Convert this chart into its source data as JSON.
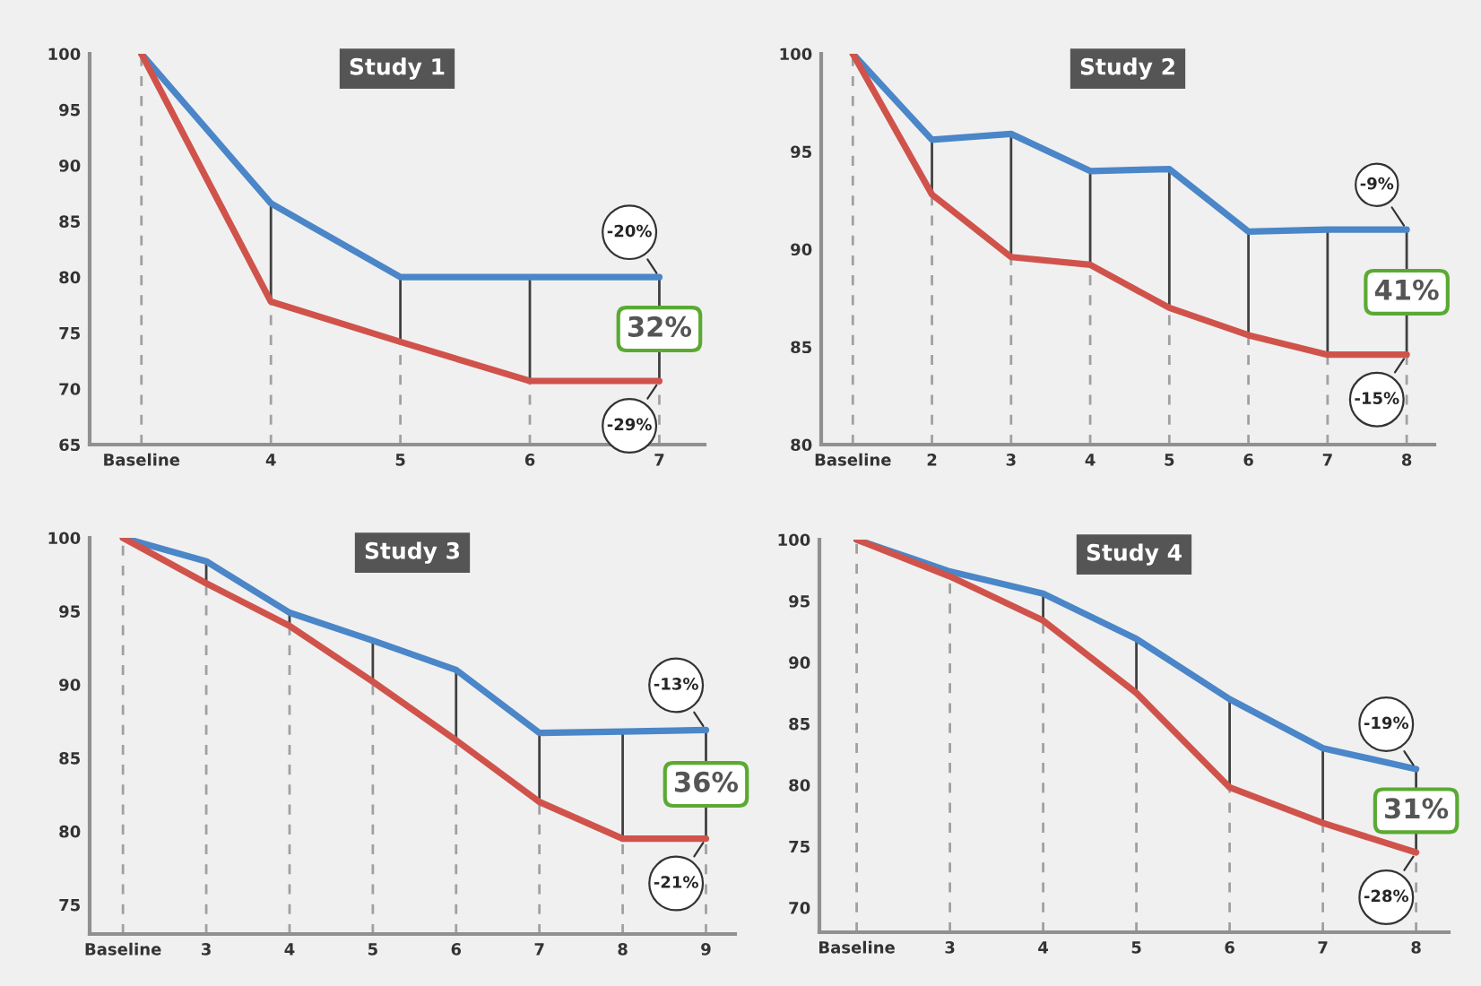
{
  "chart_data": [
    {
      "type": "line",
      "title": "Study 1",
      "categories": [
        "Baseline",
        "4",
        "5",
        "6",
        "7"
      ],
      "ylim": [
        65,
        100
      ],
      "yticks": [
        65,
        70,
        75,
        80,
        85,
        90,
        95,
        100
      ],
      "grid": "x",
      "marker": "none",
      "line_style": "solid",
      "series": [
        {
          "color": "#4a86c8",
          "values": [
            100,
            86.6,
            80,
            80,
            80
          ]
        },
        {
          "color": "#d0534b",
          "values": [
            100,
            77.8,
            74.2,
            70.7,
            70.7
          ]
        }
      ],
      "annotations": [
        {
          "text": "-20%",
          "x": "7",
          "y": 80
        },
        {
          "text": "-29%",
          "x": "7",
          "y": 70.7
        },
        "32%"
      ]
    },
    {
      "type": "line",
      "title": "Study 2",
      "categories": [
        "Baseline",
        "2",
        "3",
        "4",
        "5",
        "6",
        "7",
        "8"
      ],
      "ylim": [
        80,
        100
      ],
      "yticks": [
        80,
        85,
        90,
        95,
        100
      ],
      "grid": "x",
      "marker": "none",
      "line_style": "solid",
      "series": [
        {
          "color": "#4a86c8",
          "values": [
            100,
            95.6,
            95.9,
            94.0,
            94.1,
            90.9,
            91.0,
            91.0
          ]
        },
        {
          "color": "#d0534b",
          "values": [
            100,
            92.8,
            89.6,
            89.2,
            87.0,
            85.6,
            84.6,
            84.6
          ]
        }
      ],
      "annotations": [
        {
          "text": "-9%",
          "x": "8",
          "y": 91.0
        },
        {
          "text": "-15%",
          "x": "8",
          "y": 84.6
        },
        "41%"
      ]
    },
    {
      "type": "line",
      "title": "Study 3",
      "categories": [
        "Baseline",
        "3",
        "4",
        "5",
        "6",
        "7",
        "8",
        "9"
      ],
      "ylim": [
        73,
        100
      ],
      "yticks": [
        75,
        80,
        85,
        90,
        95,
        100
      ],
      "grid": "x",
      "marker": "none",
      "line_style": "solid",
      "series": [
        {
          "color": "#4a86c8",
          "values": [
            100,
            98.4,
            94.9,
            93.0,
            91.0,
            86.7,
            86.8,
            86.9
          ]
        },
        {
          "color": "#d0534b",
          "values": [
            100,
            96.9,
            94.0,
            90.2,
            86.2,
            82.0,
            79.5,
            79.5
          ]
        }
      ],
      "annotations": [
        {
          "text": "-13%",
          "x": "9",
          "y": 86.9
        },
        {
          "text": "-21%",
          "x": "9",
          "y": 79.5
        },
        "36%"
      ]
    },
    {
      "type": "line",
      "title": "Study 4",
      "categories": [
        "Baseline",
        "3",
        "4",
        "5",
        "6",
        "7",
        "8"
      ],
      "ylim": [
        68,
        100
      ],
      "yticks": [
        70,
        75,
        80,
        85,
        90,
        95,
        100
      ],
      "grid": "x",
      "marker": "none",
      "line_style": "solid",
      "series": [
        {
          "color": "#4a86c8",
          "values": [
            100,
            97.4,
            95.6,
            91.9,
            87.0,
            83.0,
            81.3
          ]
        },
        {
          "color": "#d0534b",
          "values": [
            100,
            97.0,
            93.4,
            87.5,
            79.8,
            76.9,
            74.5
          ]
        }
      ],
      "annotations": [
        {
          "text": "-19%",
          "x": "8",
          "y": 81.3
        },
        {
          "text": "-28%",
          "x": "8",
          "y": 74.5
        },
        "31%"
      ]
    }
  ]
}
